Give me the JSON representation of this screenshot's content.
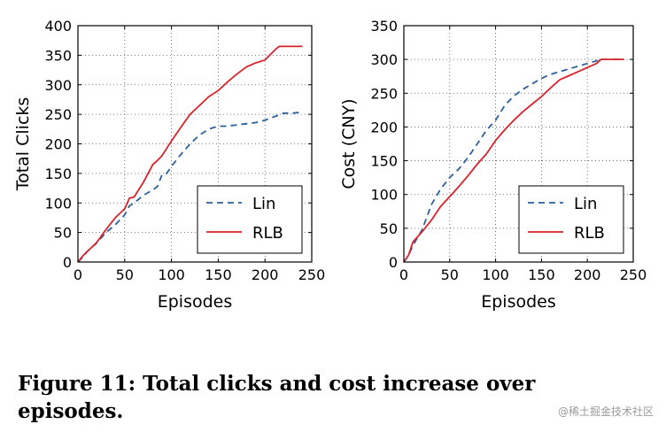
{
  "chart_data": [
    {
      "type": "line",
      "ylabel": "Total Clicks",
      "xlabel": "Episodes",
      "xlim": [
        0,
        250
      ],
      "ylim": [
        0,
        400
      ],
      "xticks": [
        0,
        50,
        100,
        150,
        200,
        250
      ],
      "yticks": [
        0,
        50,
        100,
        150,
        200,
        250,
        300,
        350,
        400
      ],
      "grid": true,
      "legend": "lower-right",
      "series": [
        {
          "name": "Lin",
          "color": "#2c5f9e",
          "dash": "dashed",
          "x": [
            0,
            5,
            10,
            20,
            30,
            40,
            50,
            55,
            60,
            70,
            80,
            85,
            90,
            95,
            100,
            110,
            120,
            130,
            140,
            150,
            160,
            170,
            180,
            190,
            200,
            210,
            220,
            230,
            240
          ],
          "y": [
            0,
            8,
            18,
            32,
            50,
            63,
            80,
            95,
            100,
            113,
            122,
            128,
            148,
            150,
            162,
            182,
            200,
            215,
            225,
            230,
            230,
            232,
            234,
            236,
            240,
            246,
            252,
            252,
            254
          ]
        },
        {
          "name": "RLB",
          "color": "#d8232a",
          "dash": "solid",
          "x": [
            0,
            5,
            10,
            20,
            30,
            40,
            50,
            55,
            60,
            70,
            80,
            85,
            90,
            100,
            110,
            120,
            130,
            140,
            150,
            160,
            170,
            180,
            190,
            200,
            210,
            215,
            220,
            230,
            240
          ],
          "y": [
            0,
            10,
            18,
            33,
            55,
            75,
            90,
            108,
            110,
            135,
            165,
            172,
            180,
            205,
            228,
            250,
            265,
            280,
            290,
            305,
            318,
            330,
            337,
            342,
            358,
            365,
            365,
            365,
            365
          ]
        }
      ]
    },
    {
      "type": "line",
      "ylabel": "Cost (CNY)",
      "xlabel": "Episodes",
      "xlim": [
        0,
        250
      ],
      "ylim": [
        0,
        350
      ],
      "xticks": [
        0,
        50,
        100,
        150,
        200,
        250
      ],
      "yticks": [
        0,
        50,
        100,
        150,
        200,
        250,
        300,
        350
      ],
      "grid": true,
      "legend": "lower-right",
      "series": [
        {
          "name": "Lin",
          "color": "#2c5f9e",
          "dash": "dashed",
          "x": [
            0,
            5,
            10,
            20,
            30,
            40,
            50,
            60,
            70,
            80,
            90,
            100,
            110,
            120,
            130,
            140,
            150,
            160,
            170,
            180,
            190,
            200,
            210,
            215,
            220,
            230,
            240
          ],
          "y": [
            0,
            10,
            25,
            48,
            85,
            108,
            125,
            138,
            155,
            175,
            195,
            210,
            232,
            246,
            256,
            264,
            272,
            278,
            282,
            286,
            290,
            294,
            298,
            300,
            300,
            300,
            300
          ]
        },
        {
          "name": "RLB",
          "color": "#d8232a",
          "dash": "solid",
          "x": [
            0,
            5,
            10,
            20,
            30,
            40,
            50,
            60,
            70,
            80,
            90,
            100,
            110,
            120,
            130,
            140,
            150,
            160,
            170,
            180,
            190,
            200,
            210,
            215,
            220,
            230,
            240
          ],
          "y": [
            0,
            10,
            30,
            45,
            62,
            82,
            97,
            112,
            128,
            145,
            160,
            180,
            196,
            210,
            223,
            234,
            245,
            258,
            270,
            276,
            282,
            288,
            294,
            300,
            300,
            300,
            300
          ]
        }
      ]
    }
  ],
  "caption": {
    "line1": "Figure 11:  Total clicks and cost increase over",
    "line2": "episodes."
  },
  "watermark": "@稀土掘金技术社区"
}
